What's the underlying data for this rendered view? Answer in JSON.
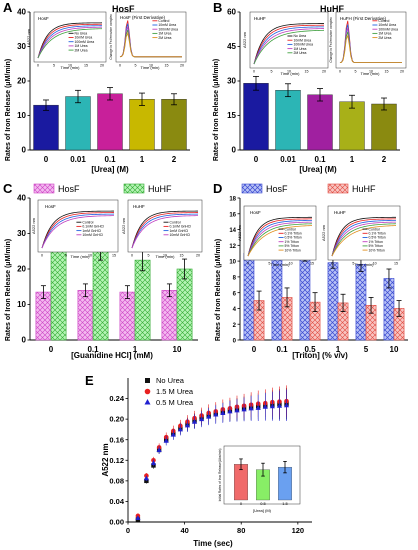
{
  "panels": {
    "A": {
      "letter": "A",
      "title": "HosF",
      "ylabel": "Rates of Iron Release (μM/min)",
      "xlabel": "[Urea] (M)",
      "ylim": [
        0,
        40
      ],
      "yticks": [
        "0",
        "10",
        "20",
        "30",
        "40"
      ],
      "inset1": {
        "title": "HosF",
        "ylabel": "A522 nm",
        "xlabel": "Time (min)",
        "xticks": [
          "0",
          "5",
          "10",
          "15",
          "20"
        ],
        "legend": [
          "No Urea",
          "10mM Urea",
          "100mM Urea",
          "1M Urea",
          "2M Urea"
        ]
      },
      "inset2": {
        "title": "HosF (First Derivative)",
        "ylabel": "Change in Fe-ferrozine complex",
        "xlabel": "Time (min)",
        "xticks": [
          "0",
          "5",
          "10",
          "15",
          "20"
        ],
        "legend": [
          "Control",
          "10mM Urea",
          "100mM Urea",
          "1M Urea",
          "2M Urea"
        ]
      }
    },
    "B": {
      "letter": "B",
      "title": "HuHF",
      "ylabel": "Rates of Iron Release (μM/min)",
      "xlabel": "[Urea] (M)",
      "ylim": [
        0,
        60
      ],
      "yticks": [
        "0",
        "15",
        "30",
        "45",
        "60"
      ],
      "inset1": {
        "title": "HuHF",
        "ylabel": "A522 nm",
        "xlabel": "Time (min)",
        "xticks": [
          "0",
          "5",
          "10",
          "15",
          "20"
        ],
        "legend": [
          "No Urea",
          "10mM Urea",
          "100mM Urea",
          "1M Urea",
          "2M Urea"
        ]
      },
      "inset2": {
        "title": "HuFH (First Derivative)",
        "ylabel": "Change in Fe-ferrozine complex",
        "xlabel": "Time (min)",
        "xticks": [
          "0",
          "5",
          "10",
          "15",
          "20"
        ],
        "legend": [
          "Control",
          "10mM Urea",
          "100mM Urea",
          "1M Urea",
          "2M Urea"
        ]
      }
    },
    "C": {
      "letter": "C",
      "legend": [
        "HosF",
        "HuHF"
      ],
      "ylabel": "Rates of Iron Release (μM/min)",
      "xlabel": "[Guanidine HCl] (mM)",
      "ylim": [
        0,
        40
      ],
      "yticks": [
        "0",
        "10",
        "20",
        "30",
        "40"
      ],
      "inset1": {
        "title": "HosF",
        "ylabel": "A522 nm",
        "xlabel": "Time (min)",
        "xticks": [
          "0",
          "5",
          "10",
          "15"
        ],
        "legend": [
          "Control",
          "0.1mM GnHCl",
          "1mM GnHCl",
          "10mM GnHCl"
        ]
      },
      "inset2": {
        "title": "HuHF",
        "ylabel": "A522 nm",
        "xlabel": "Time (min)",
        "xticks": [
          "0",
          "5",
          "10",
          "15",
          "20"
        ],
        "legend": [
          "Control",
          "0.1mM GnHCl",
          "1mM GnHCl",
          "10mM GnHCl"
        ]
      }
    },
    "D": {
      "letter": "D",
      "legend": [
        "HosF",
        "HuHF"
      ],
      "ylabel": "Rates of Iron Release (μM/min)",
      "xlabel": "[Triton] (% v/v)",
      "ylim": [
        0,
        18
      ],
      "yticks": [
        "0",
        "2",
        "4",
        "6",
        "8",
        "10",
        "12",
        "14",
        "16",
        "18"
      ],
      "inset1": {
        "title": "HosF",
        "ylabel": "A522 nm",
        "xlabel": "Time (min)",
        "xticks": [
          "0",
          "5",
          "10",
          "15"
        ],
        "legend": [
          "Control",
          "0.1% Triton",
          "0.5% Triton",
          "1% Triton",
          "5% Triton",
          "10% Triton"
        ]
      },
      "inset2": {
        "title": "HuHF",
        "ylabel": "A522 nm",
        "xlabel": "Time (min)",
        "xticks": [
          "0",
          "5",
          "10",
          "15"
        ],
        "legend": [
          "Control",
          "0.1% Triton",
          "0.5% Triton",
          "1% Triton",
          "5% Triton",
          "10% Triton"
        ]
      }
    },
    "E": {
      "letter": "E",
      "ylabel": "A522 nm",
      "xlabel": "Time (sec)",
      "ylim": [
        0,
        0.28
      ],
      "xlim": [
        0,
        130
      ],
      "yticks": [
        "0.00",
        "0.04",
        "0.08",
        "0.12",
        "0.16",
        "0.20",
        "0.24"
      ],
      "xticks": [
        "0",
        "40",
        "80",
        "120"
      ],
      "legend": [
        "No Urea",
        "1.5 M Urea",
        "0.5 M Urea"
      ],
      "inset": {
        "ylabel": "Initial Rates of Iron Release(Abs/min)",
        "xlabel": "[Urea] (M)",
        "xticks": [
          "0",
          "0.5",
          "1.5"
        ]
      }
    }
  },
  "colors": {
    "A": [
      "#1a1aa0",
      "#2cb5b5",
      "#c8209a",
      "#c8b800",
      "#8a8a10"
    ],
    "B": [
      "#1a1aa0",
      "#2cb5b5",
      "#a020a0",
      "#a8b018",
      "#8a8a10"
    ],
    "C": [
      "#ee8ee8",
      "#88ee88"
    ],
    "D": [
      "#6d7ee8",
      "#f08a80"
    ],
    "E": [
      "#111111",
      "#e82020",
      "#2020d0"
    ],
    "Einset": [
      "#f06a6a",
      "#88ee66",
      "#6aa0f0"
    ]
  },
  "chart_data": [
    {
      "type": "bar",
      "panel": "A",
      "categories": [
        "0",
        "0.01",
        "0.1",
        "1",
        "2"
      ],
      "values": [
        13,
        15.5,
        16.3,
        14.7,
        14.7
      ],
      "errors": [
        1.5,
        1.8,
        1.8,
        1.8,
        1.6
      ],
      "ylim": [
        0,
        40
      ]
    },
    {
      "type": "bar",
      "panel": "B",
      "categories": [
        "0",
        "0.01",
        "0.1",
        "1",
        "2"
      ],
      "values": [
        29,
        26,
        24,
        21,
        20
      ],
      "errors": [
        3,
        2.8,
        2.7,
        2.8,
        2.6
      ],
      "ylim": [
        0,
        60
      ]
    },
    {
      "type": "bar",
      "panel": "C",
      "categories": [
        "0",
        "0.1",
        "1",
        "10"
      ],
      "series": [
        {
          "name": "HosF",
          "values": [
            13.5,
            14,
            13.5,
            14
          ],
          "errors": [
            1.8,
            1.8,
            1.8,
            1.8
          ]
        },
        {
          "name": "HuHF",
          "values": [
            30,
            25,
            22.5,
            20
          ],
          "errors": [
            1.8,
            2.5,
            3,
            2.8
          ]
        }
      ],
      "ylim": [
        0,
        40
      ]
    },
    {
      "type": "bar",
      "panel": "D",
      "categories": [
        "0",
        "0.1",
        "0.5",
        "1",
        "5",
        "10"
      ],
      "series": [
        {
          "name": "HosF",
          "values": [
            11,
            11.8,
            10.8,
            9.8,
            9.6,
            7.8
          ],
          "errors": [
            0.8,
            0.8,
            0.8,
            0.7,
            0.9,
            1.2
          ]
        },
        {
          "name": "HuHF",
          "values": [
            5,
            5.4,
            4.8,
            4.7,
            4.4,
            4
          ],
          "errors": [
            1.2,
            1.2,
            1.2,
            1.1,
            1.0,
            1.0
          ]
        }
      ],
      "ylim": [
        0,
        18
      ]
    },
    {
      "type": "scatter",
      "panel": "E",
      "x": [
        7,
        13,
        18,
        22,
        27,
        32,
        37,
        42,
        47,
        52,
        57,
        62,
        67,
        72,
        77,
        82,
        87,
        92,
        97,
        102,
        107,
        112
      ],
      "series": [
        {
          "name": "No Urea",
          "values": [
            0.005,
            0.08,
            0.11,
            0.14,
            0.16,
            0.172,
            0.182,
            0.19,
            0.197,
            0.203,
            0.207,
            0.211,
            0.214,
            0.217,
            0.219,
            0.221,
            0.223,
            0.225,
            0.226,
            0.228,
            0.229,
            0.23
          ]
        },
        {
          "name": "1.5 M Urea",
          "values": [
            0.012,
            0.09,
            0.12,
            0.145,
            0.165,
            0.177,
            0.187,
            0.195,
            0.202,
            0.207,
            0.212,
            0.215,
            0.219,
            0.221,
            0.224,
            0.226,
            0.228,
            0.23,
            0.231,
            0.233,
            0.234,
            0.235
          ]
        },
        {
          "name": "0.5 M Urea",
          "values": [
            0.008,
            0.085,
            0.115,
            0.14,
            0.158,
            0.17,
            0.18,
            0.188,
            0.195,
            0.2,
            0.205,
            0.209,
            0.212,
            0.215,
            0.217,
            0.219,
            0.221,
            0.222,
            0.224,
            0.225,
            0.226,
            0.227
          ]
        }
      ],
      "ylim": [
        0,
        0.28
      ],
      "xlim": [
        0,
        130
      ],
      "inset": {
        "type": "bar",
        "categories": [
          "0",
          "0.5",
          "1.5"
        ],
        "values": [
          1.0,
          0.85,
          0.92
        ],
        "errors": [
          0.15,
          0.18,
          0.16
        ]
      }
    }
  ]
}
